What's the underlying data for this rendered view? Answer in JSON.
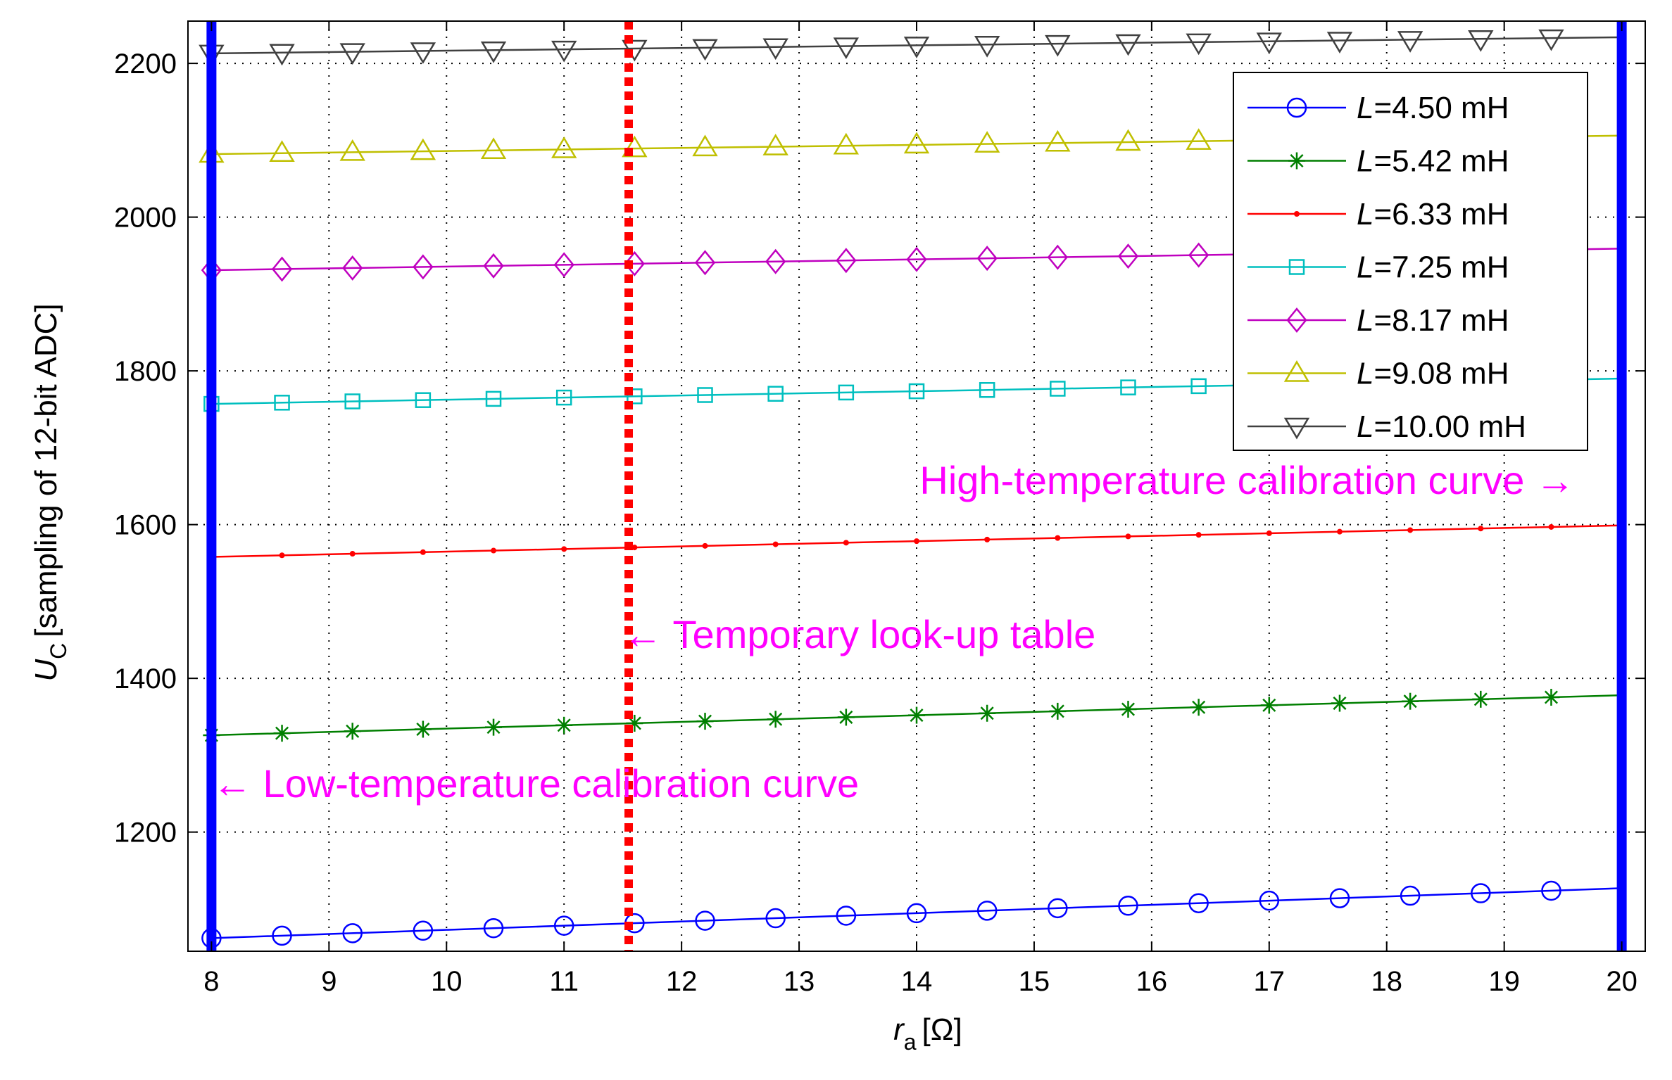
{
  "chart_data": {
    "type": "line",
    "title": "",
    "xlabel": {
      "main": "r",
      "sub": "a",
      "unit": "[Ω]"
    },
    "ylabel": {
      "main": "U",
      "sub": "C",
      "unit": "[sampling of 12-bit ADC]"
    },
    "xlim": [
      7.8,
      20.2
    ],
    "ylim": [
      1045,
      2255
    ],
    "xticks": [
      8,
      9,
      10,
      11,
      12,
      13,
      14,
      15,
      16,
      17,
      18,
      19,
      20
    ],
    "yticks": [
      1200,
      1400,
      1600,
      1800,
      2000,
      2200
    ],
    "grid": true,
    "x": [
      8.0,
      8.6,
      9.2,
      9.8,
      10.4,
      11.0,
      11.6,
      12.2,
      12.8,
      13.4,
      14.0,
      14.6,
      15.2,
      15.8,
      16.4,
      17.0,
      17.6,
      18.2,
      18.8,
      19.4
    ],
    "series": [
      {
        "name": "L=4.50 mH",
        "label_var": "L",
        "label_rest": "=4.50 mH",
        "color": "#0000ff",
        "marker": "circle",
        "y_start": 1062,
        "y_end": 1127
      },
      {
        "name": "L=5.42 mH",
        "label_var": "L",
        "label_rest": "=5.42 mH",
        "color": "#007f00",
        "marker": "star",
        "y_start": 1326,
        "y_end": 1378
      },
      {
        "name": "L=6.33 mH",
        "label_var": "L",
        "label_rest": "=6.33 mH",
        "color": "#ff0000",
        "marker": "dot",
        "y_start": 1558,
        "y_end": 1599
      },
      {
        "name": "L=7.25 mH",
        "label_var": "L",
        "label_rest": "=7.25 mH",
        "color": "#00bfbf",
        "marker": "square",
        "y_start": 1757,
        "y_end": 1790
      },
      {
        "name": "L=8.17 mH",
        "label_var": "L",
        "label_rest": "=8.17 mH",
        "color": "#bf00bf",
        "marker": "diamond",
        "y_start": 1931,
        "y_end": 1959
      },
      {
        "name": "L=9.08 mH",
        "label_var": "L",
        "label_rest": "=9.08 mH",
        "color": "#bfbf00",
        "marker": "triangle-up",
        "y_start": 2082,
        "y_end": 2106
      },
      {
        "name": "L=10.00 mH",
        "label_var": "L",
        "label_rest": "=10.00 mH",
        "color": "#404040",
        "marker": "triangle-down",
        "y_start": 2213,
        "y_end": 2234
      }
    ],
    "vertical_lines": [
      {
        "x": 8,
        "color": "#0000ff",
        "style": "solid"
      },
      {
        "x": 11.55,
        "color": "#ff0000",
        "style": "dotted"
      },
      {
        "x": 20,
        "color": "#0000ff",
        "style": "solid"
      }
    ],
    "annotations": [
      {
        "text": "High-temperature calibration curve →",
        "color": "#ff00ff"
      },
      {
        "text": "← Temporary look-up table",
        "color": "#ff00ff"
      },
      {
        "text": "← Low-temperature calibration curve",
        "color": "#ff00ff"
      }
    ],
    "legend_position": "top-right"
  }
}
